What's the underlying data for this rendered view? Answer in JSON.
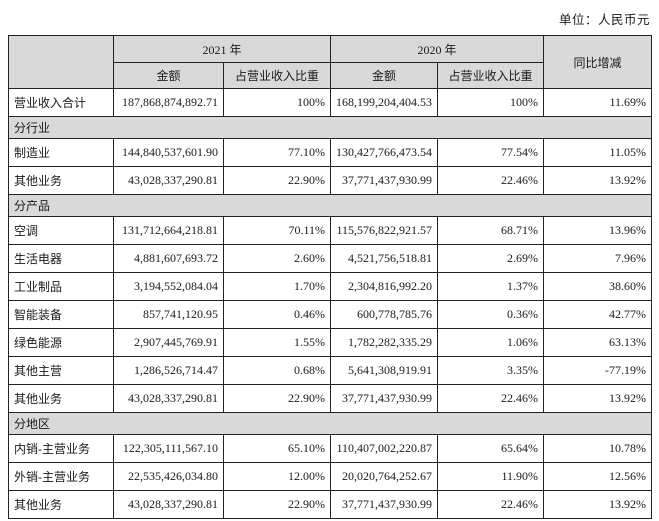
{
  "unit_label": "单位：人民币元",
  "table": {
    "header": {
      "year_2021": "2021 年",
      "year_2020": "2020 年",
      "yoy": "同比增减",
      "amount": "金额",
      "pct_of_revenue": "占营业收入比重"
    },
    "rows": [
      {
        "type": "data",
        "label": "营业收入合计",
        "amount_2021": "187,868,874,892.71",
        "pct_2021": "100%",
        "amount_2020": "168,199,204,404.53",
        "pct_2020": "100%",
        "yoy": "11.69%"
      },
      {
        "type": "section",
        "label": "分行业"
      },
      {
        "type": "data",
        "label": "制造业",
        "amount_2021": "144,840,537,601.90",
        "pct_2021": "77.10%",
        "amount_2020": "130,427,766,473.54",
        "pct_2020": "77.54%",
        "yoy": "11.05%"
      },
      {
        "type": "data",
        "label": "其他业务",
        "amount_2021": "43,028,337,290.81",
        "pct_2021": "22.90%",
        "amount_2020": "37,771,437,930.99",
        "pct_2020": "22.46%",
        "yoy": "13.92%"
      },
      {
        "type": "section",
        "label": "分产品"
      },
      {
        "type": "data",
        "label": "空调",
        "amount_2021": "131,712,664,218.81",
        "pct_2021": "70.11%",
        "amount_2020": "115,576,822,921.57",
        "pct_2020": "68.71%",
        "yoy": "13.96%"
      },
      {
        "type": "data",
        "label": "生活电器",
        "amount_2021": "4,881,607,693.72",
        "pct_2021": "2.60%",
        "amount_2020": "4,521,756,518.81",
        "pct_2020": "2.69%",
        "yoy": "7.96%"
      },
      {
        "type": "data",
        "label": "工业制品",
        "amount_2021": "3,194,552,084.04",
        "pct_2021": "1.70%",
        "amount_2020": "2,304,816,992.20",
        "pct_2020": "1.37%",
        "yoy": "38.60%"
      },
      {
        "type": "data",
        "label": "智能装备",
        "amount_2021": "857,741,120.95",
        "pct_2021": "0.46%",
        "amount_2020": "600,778,785.76",
        "pct_2020": "0.36%",
        "yoy": "42.77%"
      },
      {
        "type": "data",
        "label": "绿色能源",
        "amount_2021": "2,907,445,769.91",
        "pct_2021": "1.55%",
        "amount_2020": "1,782,282,335.29",
        "pct_2020": "1.06%",
        "yoy": "63.13%"
      },
      {
        "type": "data",
        "label": "其他主营",
        "amount_2021": "1,286,526,714.47",
        "pct_2021": "0.68%",
        "amount_2020": "5,641,308,919.91",
        "pct_2020": "3.35%",
        "yoy": "-77.19%"
      },
      {
        "type": "data",
        "label": "其他业务",
        "amount_2021": "43,028,337,290.81",
        "pct_2021": "22.90%",
        "amount_2020": "37,771,437,930.99",
        "pct_2020": "22.46%",
        "yoy": "13.92%"
      },
      {
        "type": "section",
        "label": "分地区"
      },
      {
        "type": "data",
        "label": "内销-主营业务",
        "amount_2021": "122,305,111,567.10",
        "pct_2021": "65.10%",
        "amount_2020": "110,407,002,220.87",
        "pct_2020": "65.64%",
        "yoy": "10.78%"
      },
      {
        "type": "data",
        "label": "外销-主营业务",
        "amount_2021": "22,535,426,034.80",
        "pct_2021": "12.00%",
        "amount_2020": "20,020,764,252.67",
        "pct_2020": "11.90%",
        "yoy": "12.56%"
      },
      {
        "type": "data",
        "label": "其他业务",
        "amount_2021": "43,028,337,290.81",
        "pct_2021": "22.90%",
        "amount_2020": "37,771,437,930.99",
        "pct_2020": "22.46%",
        "yoy": "13.92%"
      }
    ]
  }
}
